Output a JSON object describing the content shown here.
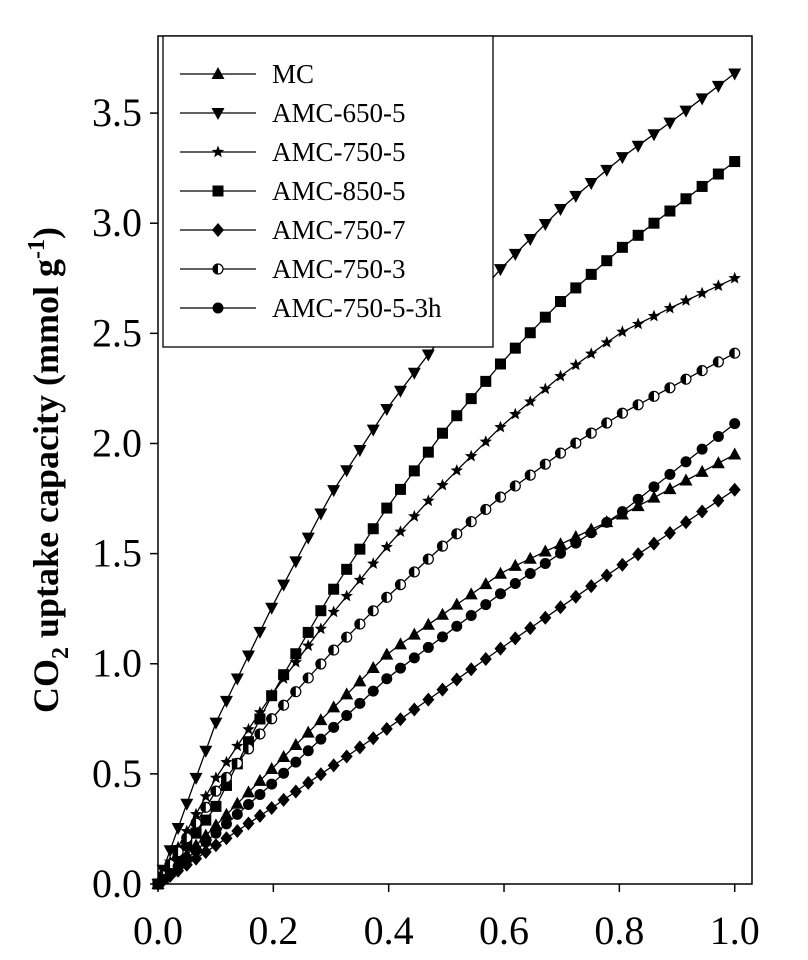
{
  "chart_data": {
    "type": "line",
    "title": "",
    "xlabel": "",
    "ylabel_main": "CO",
    "ylabel_sub": "2",
    "ylabel_rest": " uptake capacity (mmol g",
    "ylabel_sup": "-1",
    "ylabel_close": ")",
    "xlim": [
      0,
      1.03
    ],
    "ylim": [
      0,
      3.85
    ],
    "xticks": [
      0,
      0.2,
      0.4,
      0.6,
      0.8,
      1.0
    ],
    "xtick_labels": [
      "0.0",
      "0.2",
      "0.4",
      "0.6",
      "0.8",
      "1.0"
    ],
    "yticks": [
      0,
      0.5,
      1.0,
      1.5,
      2.0,
      2.5,
      3.0,
      3.5
    ],
    "ytick_labels": [
      "0.0",
      "0.5",
      "1.0",
      "1.5",
      "2.0",
      "2.5",
      "3.0",
      "3.5"
    ],
    "legend_position": "top-left",
    "grid": false,
    "series": [
      {
        "name": "MC",
        "marker": "triangle-up",
        "points": [
          [
            0,
            0
          ],
          [
            0.2,
            0.53
          ],
          [
            0.4,
            1.05
          ],
          [
            0.6,
            1.42
          ],
          [
            0.8,
            1.67
          ],
          [
            1.0,
            1.95
          ]
        ]
      },
      {
        "name": "AMC-650-5",
        "marker": "triangle-down",
        "points": [
          [
            0,
            0
          ],
          [
            0.1,
            0.73
          ],
          [
            0.2,
            1.27
          ],
          [
            0.3,
            1.77
          ],
          [
            0.4,
            2.17
          ],
          [
            0.5,
            2.51
          ],
          [
            0.6,
            2.81
          ],
          [
            0.7,
            3.07
          ],
          [
            0.8,
            3.29
          ],
          [
            0.9,
            3.48
          ],
          [
            1.0,
            3.68
          ]
        ]
      },
      {
        "name": "AMC-750-5",
        "marker": "star",
        "points": [
          [
            0,
            0
          ],
          [
            0.1,
            0.48
          ],
          [
            0.2,
            0.87
          ],
          [
            0.3,
            1.22
          ],
          [
            0.4,
            1.54
          ],
          [
            0.5,
            1.83
          ],
          [
            0.6,
            2.09
          ],
          [
            0.7,
            2.31
          ],
          [
            0.8,
            2.5
          ],
          [
            0.9,
            2.63
          ],
          [
            1.0,
            2.75
          ]
        ]
      },
      {
        "name": "AMC-850-5",
        "marker": "square",
        "points": [
          [
            0,
            0
          ],
          [
            0.1,
            0.35
          ],
          [
            0.2,
            0.87
          ],
          [
            0.3,
            1.32
          ],
          [
            0.4,
            1.72
          ],
          [
            0.5,
            2.07
          ],
          [
            0.6,
            2.38
          ],
          [
            0.7,
            2.65
          ],
          [
            0.8,
            2.88
          ],
          [
            0.9,
            3.08
          ],
          [
            1.0,
            3.28
          ]
        ]
      },
      {
        "name": "AMC-750-7",
        "marker": "diamond",
        "points": [
          [
            0,
            0
          ],
          [
            0.2,
            0.35
          ],
          [
            0.4,
            0.71
          ],
          [
            0.6,
            1.08
          ],
          [
            0.8,
            1.44
          ],
          [
            1.0,
            1.79
          ]
        ]
      },
      {
        "name": "AMC-750-3",
        "marker": "half-circle",
        "points": [
          [
            0,
            0
          ],
          [
            0.1,
            0.42
          ],
          [
            0.2,
            0.76
          ],
          [
            0.3,
            1.05
          ],
          [
            0.4,
            1.31
          ],
          [
            0.5,
            1.55
          ],
          [
            0.6,
            1.77
          ],
          [
            0.7,
            1.96
          ],
          [
            0.8,
            2.13
          ],
          [
            0.9,
            2.27
          ],
          [
            1.0,
            2.41
          ]
        ]
      },
      {
        "name": "AMC-750-5-3h",
        "marker": "circle",
        "points": [
          [
            0,
            0
          ],
          [
            0.2,
            0.46
          ],
          [
            0.4,
            0.94
          ],
          [
            0.6,
            1.33
          ],
          [
            0.8,
            1.68
          ],
          [
            1.0,
            2.09
          ]
        ]
      }
    ]
  }
}
